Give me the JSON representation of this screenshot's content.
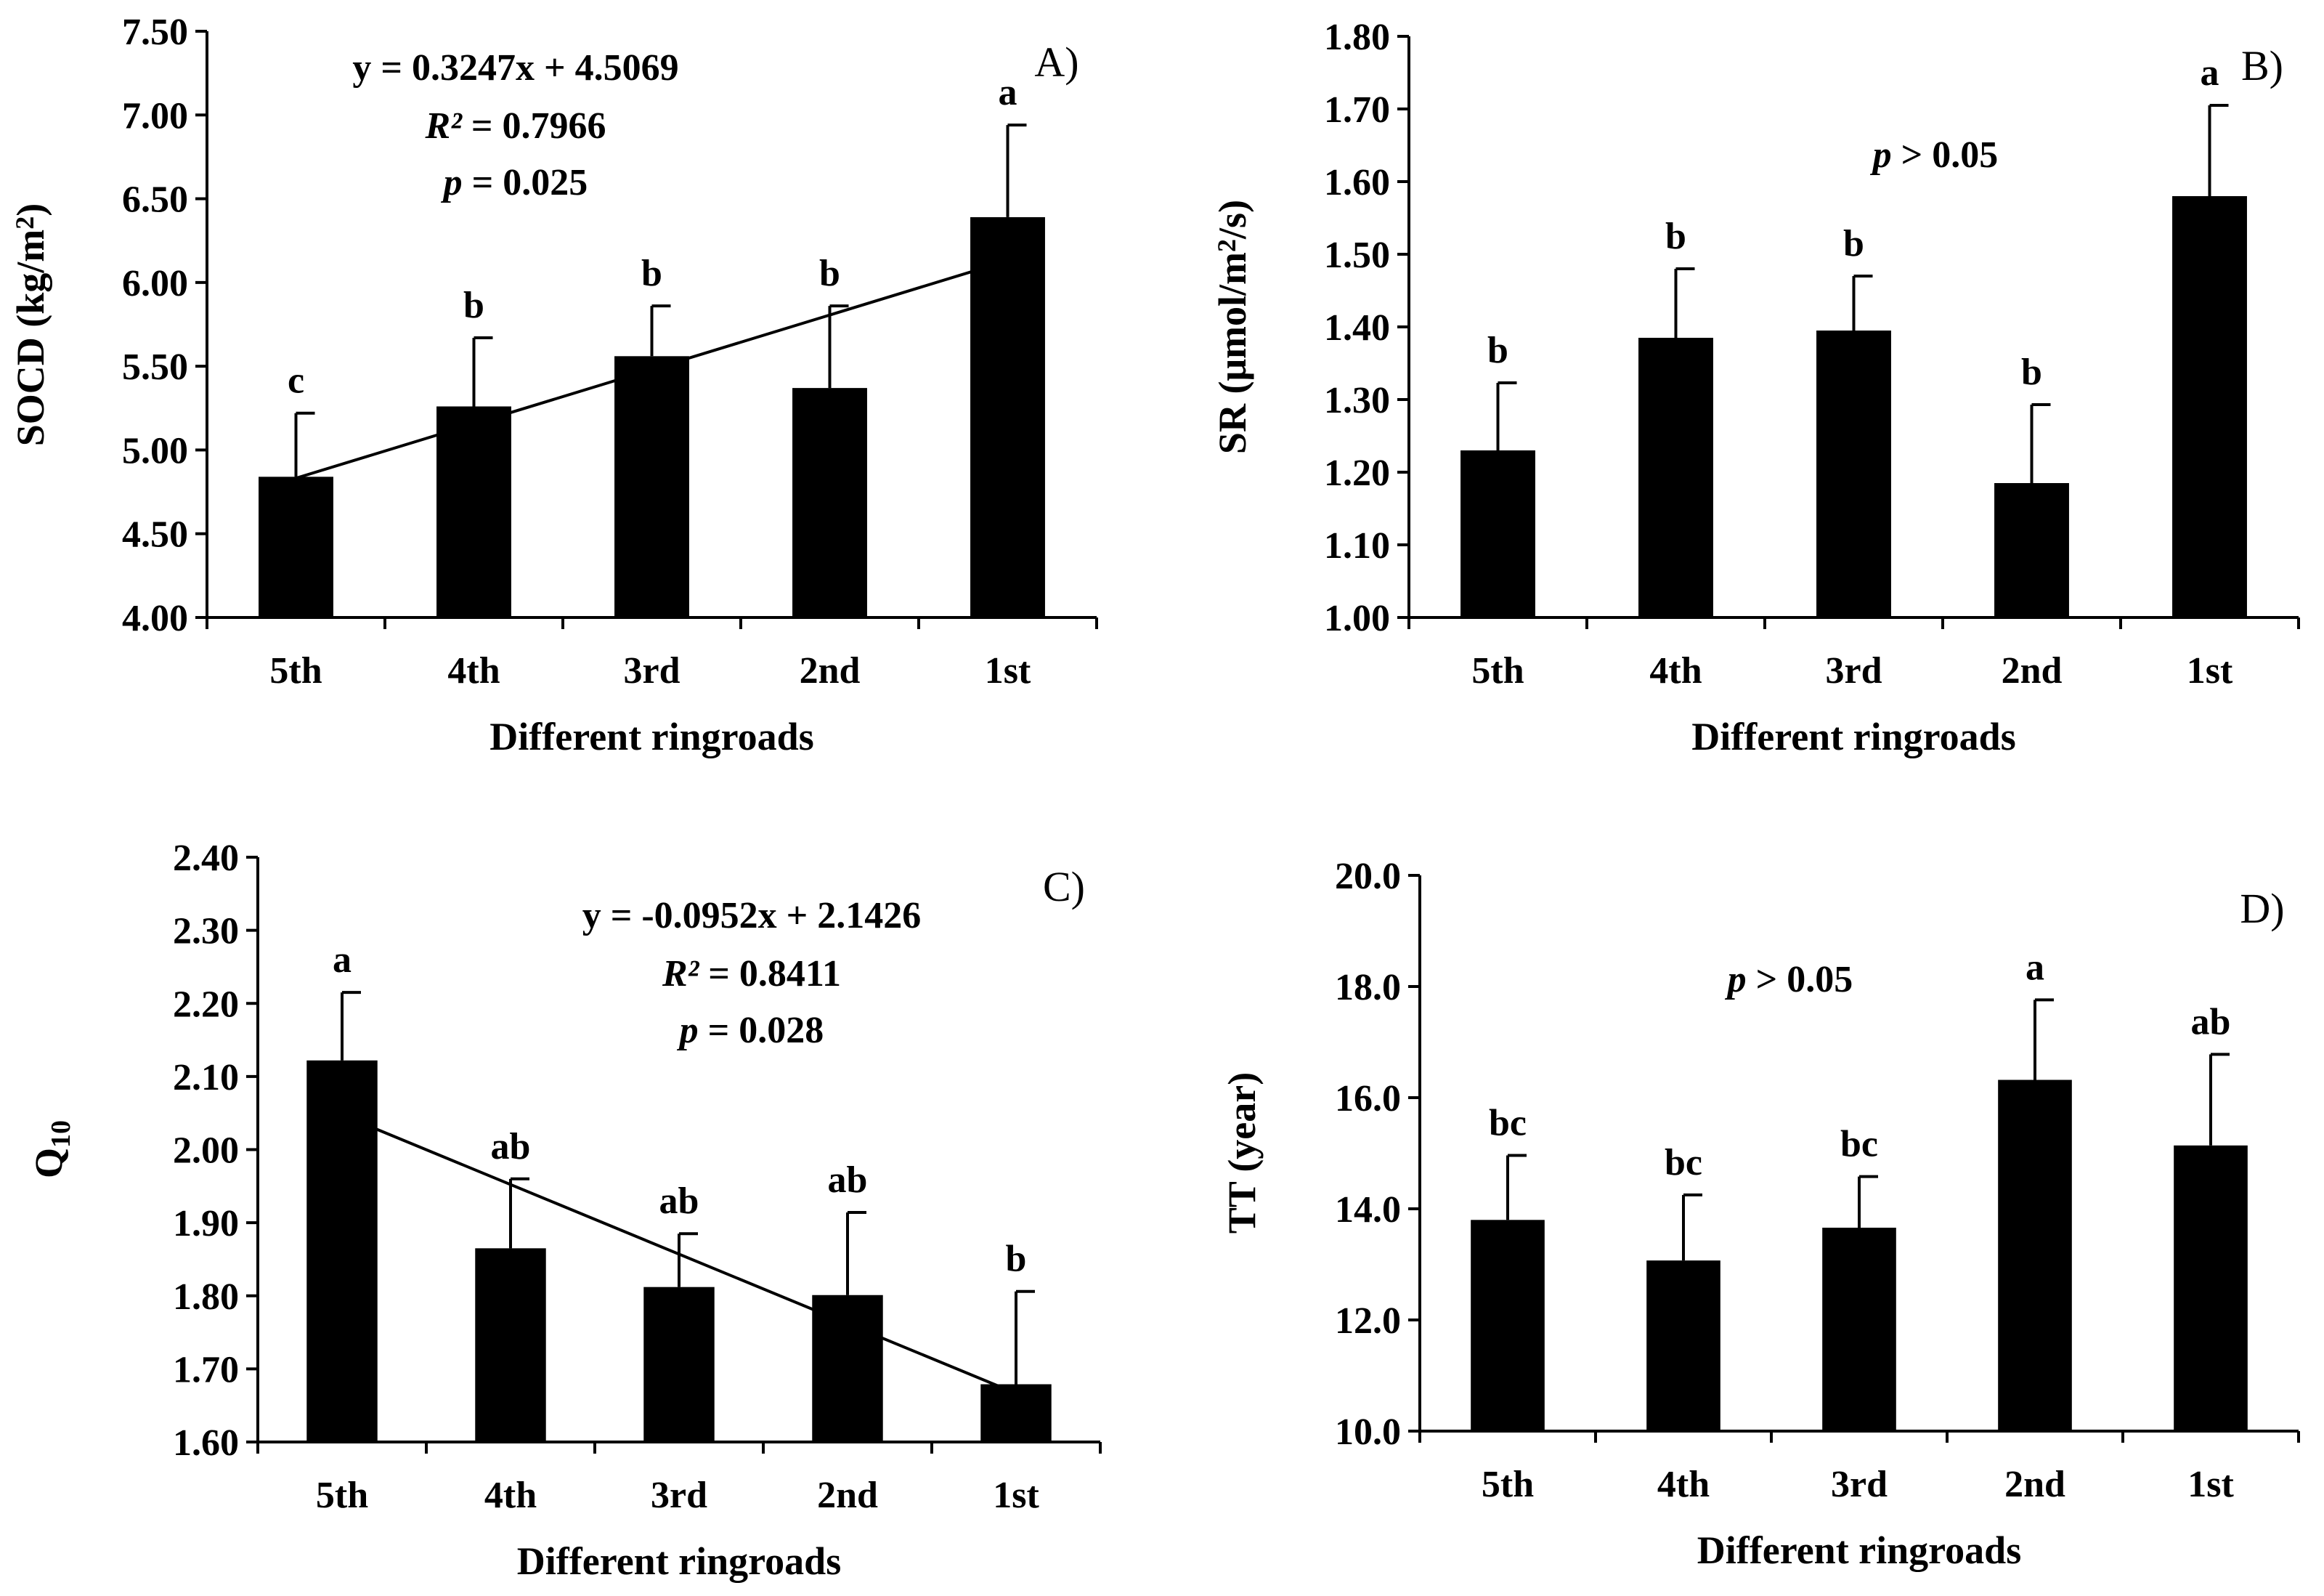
{
  "chart_data": [
    {
      "type": "bar",
      "panel": "A)",
      "categories": [
        "5th",
        "4th",
        "3rd",
        "2nd",
        "1st"
      ],
      "values": [
        4.84,
        5.26,
        5.56,
        5.37,
        6.39
      ],
      "errors": [
        0.38,
        0.41,
        0.3,
        0.49,
        0.55
      ],
      "significance": [
        "c",
        "b",
        "b",
        "b",
        "a"
      ],
      "xlabel": "Different ringroads",
      "ylabel": "SOCD (kg/m²)",
      "ylabel_parts": [
        "SOCD (kg/m",
        "2",
        ")"
      ],
      "ylim": [
        4.0,
        7.5
      ],
      "yticks": [
        4.0,
        4.5,
        5.0,
        5.5,
        6.0,
        6.5,
        7.0,
        7.5
      ],
      "ytick_labels": [
        "4.00",
        "4.50",
        "5.00",
        "5.50",
        "6.00",
        "6.50",
        "7.00",
        "7.50"
      ],
      "trendline": {
        "slope": 0.3247,
        "intercept": 4.5069
      },
      "annotations": {
        "equation": "y = 0.3247x + 4.5069",
        "r2_label": "R²",
        "r2_value": " = 0.7966",
        "p_label": "p",
        "p_value": " = 0.025"
      }
    },
    {
      "type": "bar",
      "panel": "B)",
      "categories": [
        "5th",
        "4th",
        "3rd",
        "2nd",
        "1st"
      ],
      "values": [
        1.23,
        1.385,
        1.395,
        1.185,
        1.58
      ],
      "errors": [
        0.093,
        0.095,
        0.075,
        0.108,
        0.125
      ],
      "significance": [
        "b",
        "b",
        "b",
        "b",
        "a"
      ],
      "xlabel": "Different ringroads",
      "ylabel": "SR (μmol/m²/s)",
      "ylabel_parts": [
        "SR (μmol/m",
        "2",
        "/s)"
      ],
      "ylim": [
        1.0,
        1.8
      ],
      "yticks": [
        1.0,
        1.1,
        1.2,
        1.3,
        1.4,
        1.5,
        1.6,
        1.7,
        1.8
      ],
      "ytick_labels": [
        "1.00",
        "1.10",
        "1.20",
        "1.30",
        "1.40",
        "1.50",
        "1.60",
        "1.70",
        "1.80"
      ],
      "annotations": {
        "p_label": "p",
        "p_value": " > 0.05"
      }
    },
    {
      "type": "bar",
      "panel": "C)",
      "categories": [
        "5th",
        "4th",
        "3rd",
        "2nd",
        "1st"
      ],
      "values": [
        2.122,
        1.865,
        1.812,
        1.801,
        1.679
      ],
      "errors": [
        0.093,
        0.095,
        0.073,
        0.113,
        0.127
      ],
      "significance": [
        "a",
        "ab",
        "ab",
        "ab",
        "b"
      ],
      "xlabel": "Different ringroads",
      "ylabel": "Q10",
      "ylabel_parts": [
        "Q",
        "10"
      ],
      "ylim": [
        1.6,
        2.4
      ],
      "yticks": [
        1.6,
        1.7,
        1.8,
        1.9,
        2.0,
        2.1,
        2.2,
        2.3,
        2.4
      ],
      "ytick_labels": [
        "1.60",
        "1.70",
        "1.80",
        "1.90",
        "2.00",
        "2.10",
        "2.20",
        "2.30",
        "2.40"
      ],
      "trendline": {
        "slope": -0.0952,
        "intercept": 2.1426
      },
      "annotations": {
        "equation": "y = -0.0952x + 2.1426",
        "r2_label": "R²",
        "r2_value": " = 0.8411",
        "p_label": "p",
        "p_value": " = 0.028"
      }
    },
    {
      "type": "bar",
      "panel": "D)",
      "categories": [
        "5th",
        "4th",
        "3rd",
        "2nd",
        "1st"
      ],
      "values": [
        13.8,
        13.07,
        13.66,
        16.32,
        15.14
      ],
      "errors": [
        1.16,
        1.18,
        0.92,
        1.44,
        1.64
      ],
      "significance": [
        "bc",
        "bc",
        "bc",
        "a",
        "ab"
      ],
      "xlabel": "Different ringroads",
      "ylabel": "TT (year)",
      "ylabel_parts": [
        "TT (year)"
      ],
      "ylim": [
        10.0,
        20.0
      ],
      "yticks": [
        10,
        12,
        14,
        16,
        18,
        20
      ],
      "ytick_labels": [
        "10.0",
        "12.0",
        "14.0",
        "16.0",
        "18.0",
        "20.0"
      ],
      "annotations": {
        "p_label": "p",
        "p_value": " > 0.05"
      }
    }
  ]
}
